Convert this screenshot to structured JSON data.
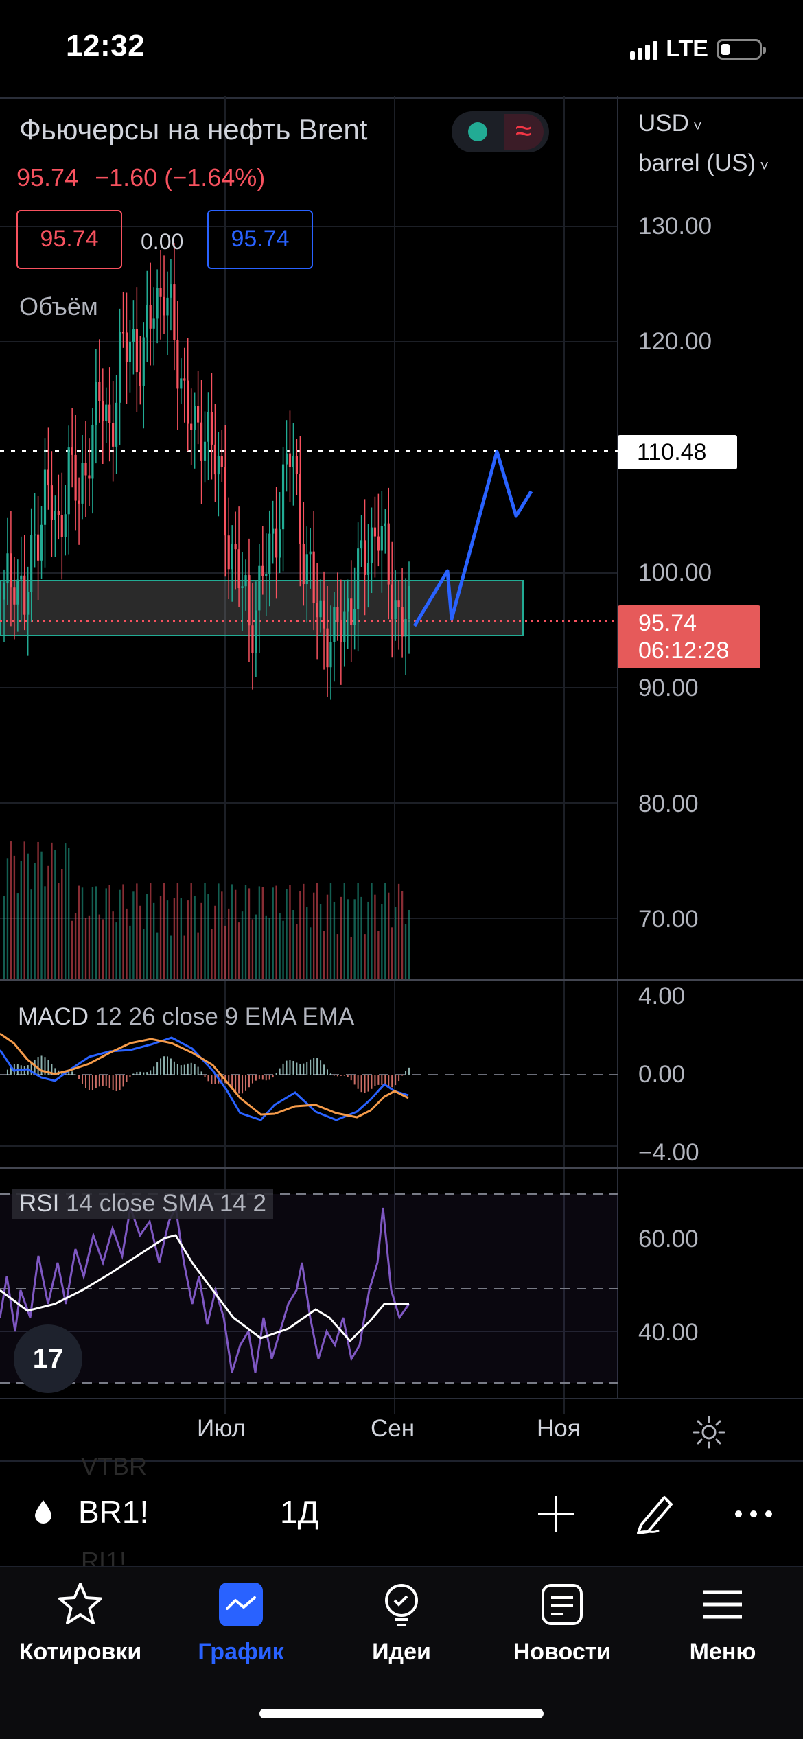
{
  "status": {
    "time": "12:32",
    "network": "LTE"
  },
  "header": {
    "title": "Фьючерсы на нефть Brent",
    "price": "95.74",
    "change": "−1.60",
    "change_pct": "(−1.64%)",
    "bid": "95.74",
    "spread": "0.00",
    "ask": "95.74",
    "volume_label": "Объём"
  },
  "axis": {
    "currency": "USD",
    "unit": "barrel (US)",
    "price_labels": [
      "130.00",
      "120.00",
      "100.00",
      "90.00",
      "80.00",
      "70.00"
    ],
    "marker_price": "110.48",
    "current_price": "95.74",
    "countdown": "06:12:28",
    "macd_labels": [
      "4.00",
      "0.00",
      "−4.00"
    ],
    "rsi_labels": [
      "60.00",
      "40.00"
    ]
  },
  "indicators": {
    "macd_name": "MACD",
    "macd_params": "12 26 close 9 EMA EMA",
    "rsi_name": "RSI",
    "rsi_params": "14 close SMA 14 2"
  },
  "time_axis": [
    "Июл",
    "Сен",
    "Ноя"
  ],
  "ghost_list": [
    "VTBR",
    "RI1!"
  ],
  "toolbar": {
    "symbol": "BR1!",
    "interval": "1Д"
  },
  "tabs": [
    {
      "label": "Котировки",
      "icon": "star-icon"
    },
    {
      "label": "График",
      "icon": "chart-icon",
      "active": true
    },
    {
      "label": "Идеи",
      "icon": "lightbulb-icon"
    },
    {
      "label": "Новости",
      "icon": "news-icon"
    },
    {
      "label": "Меню",
      "icon": "menu-icon"
    }
  ],
  "colors": {
    "up": "#22ab94",
    "down": "#f7525f",
    "accent": "#2962ff",
    "background": "#000000"
  },
  "chart_data": {
    "type": "candlestick",
    "price_axis_ticks": [
      130,
      120,
      100,
      90,
      80,
      70
    ],
    "time_axis_ticks": [
      "Июл",
      "Сен",
      "Ноя"
    ],
    "horizontal_line": 110.48,
    "current_price": 95.74,
    "support_zone": [
      94.5,
      99.5
    ],
    "close_series": [
      98,
      101,
      97,
      104,
      108,
      103,
      110,
      106,
      112,
      115,
      113,
      119,
      121,
      118,
      124,
      125,
      120,
      116,
      111,
      114,
      109,
      104,
      100,
      96,
      99,
      102,
      107,
      111,
      103,
      98,
      96,
      94,
      97,
      99,
      102,
      105,
      100,
      97,
      95.74
    ],
    "projection": [
      95.74,
      101,
      96,
      110.5,
      104,
      107
    ]
  }
}
